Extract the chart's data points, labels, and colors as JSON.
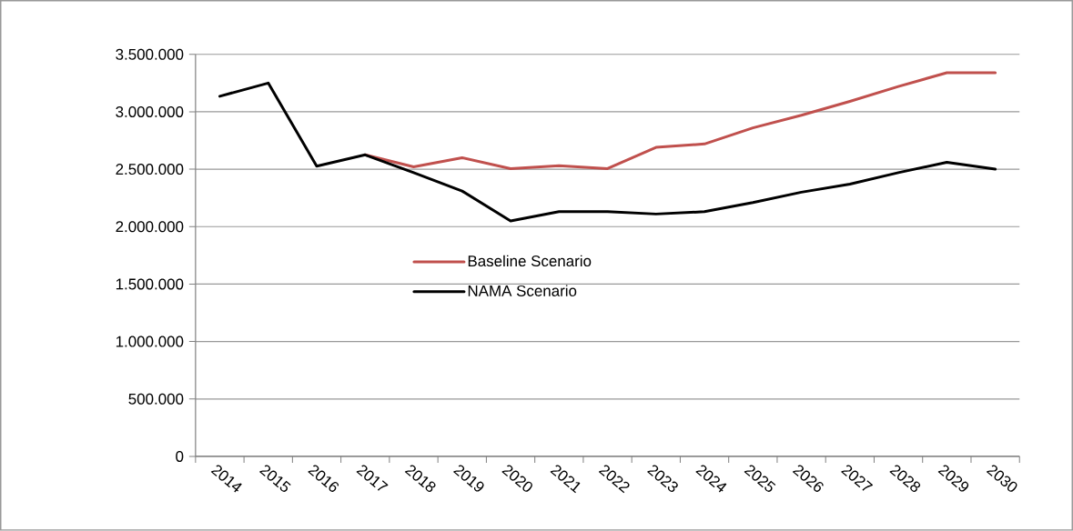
{
  "chart_data": {
    "type": "line",
    "categories": [
      "2014",
      "2015",
      "2016",
      "2017",
      "2018",
      "2019",
      "2020",
      "2021",
      "2022",
      "2023",
      "2024",
      "2025",
      "2026",
      "2027",
      "2028",
      "2029",
      "2030"
    ],
    "series": [
      {
        "name": "Baseline Scenario",
        "color": "#c0504d",
        "values": [
          null,
          null,
          null,
          2625000,
          2520000,
          2600000,
          2505000,
          2530000,
          2505000,
          2690000,
          2720000,
          2860000,
          2970000,
          3090000,
          3220000,
          3340000,
          3340000
        ]
      },
      {
        "name": "NAMA Scenario",
        "color": "#000000",
        "values": [
          3135000,
          3250000,
          2526000,
          2625000,
          2470000,
          2310000,
          2050000,
          2130000,
          2130000,
          2110000,
          2130000,
          2210000,
          2300000,
          2370000,
          2470000,
          2560000,
          2500000
        ]
      }
    ],
    "ylim": [
      0,
      3500000
    ],
    "yticks": [
      {
        "value": 0,
        "label": "0"
      },
      {
        "value": 500000,
        "label": "500.000"
      },
      {
        "value": 1000000,
        "label": "1.000.000"
      },
      {
        "value": 1500000,
        "label": "1.500.000"
      },
      {
        "value": 2000000,
        "label": "2.000.000"
      },
      {
        "value": 2500000,
        "label": "2.500.000"
      },
      {
        "value": 3000000,
        "label": "3.000.000"
      },
      {
        "value": 3500000,
        "label": "3.500.000"
      }
    ],
    "grid": "y",
    "legend": "center",
    "marker": "none",
    "line_style": "solid"
  }
}
